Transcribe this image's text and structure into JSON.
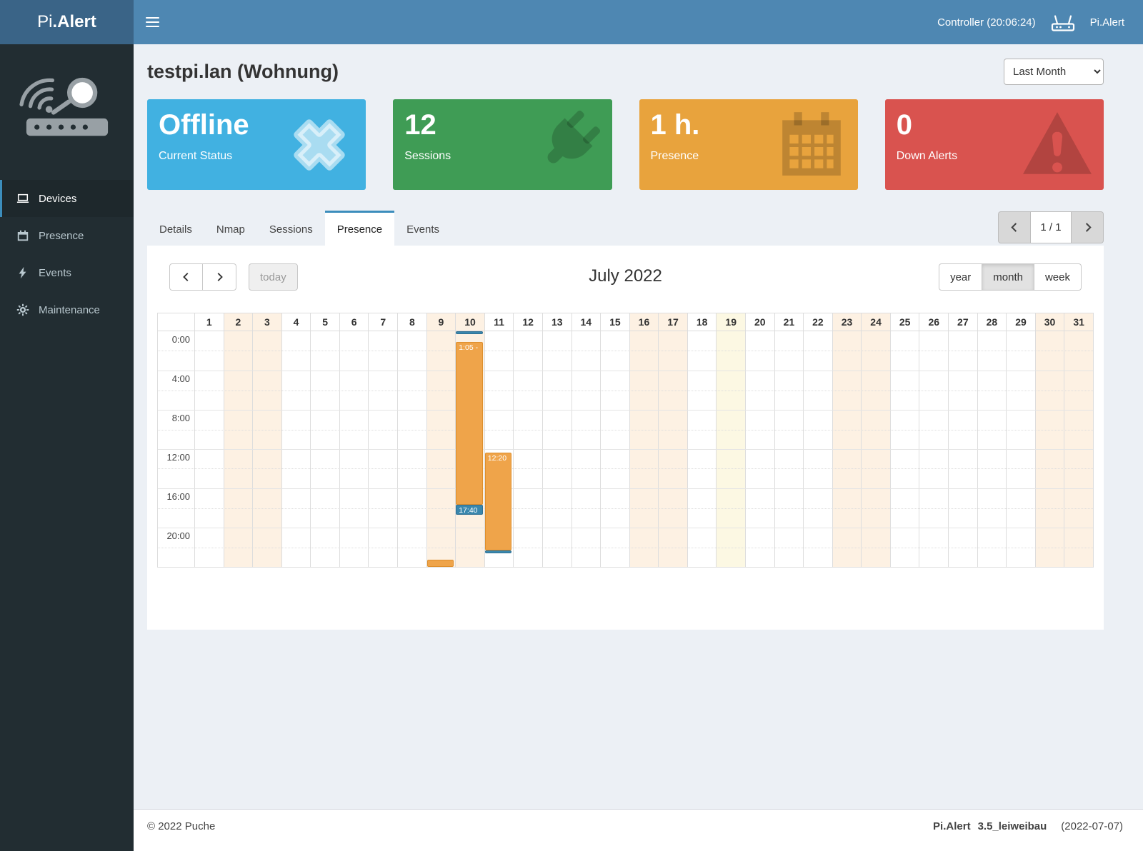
{
  "brand": {
    "light": "Pi",
    "bold": ".Alert"
  },
  "header": {
    "controller": "Controller (20:06:24)",
    "user": "Pi.Alert"
  },
  "sidebar": {
    "items": [
      {
        "label": "Devices",
        "icon": "laptop",
        "active": true
      },
      {
        "label": "Presence",
        "icon": "calendar",
        "active": false
      },
      {
        "label": "Events",
        "icon": "bolt",
        "active": false
      },
      {
        "label": "Maintenance",
        "icon": "gear",
        "active": false
      }
    ]
  },
  "page": {
    "title": "testpi.lan (Wohnung)",
    "period": "Last Month"
  },
  "cards": [
    {
      "value": "Offline",
      "label": "Current Status",
      "color": "#41b1e1",
      "icon": "close",
      "icon_color": "rgba(255,255,255,0.55)"
    },
    {
      "value": "12",
      "label": "Sessions",
      "color": "#3f9c55",
      "icon": "plug",
      "icon_color": "rgba(0,0,0,0.18)"
    },
    {
      "value": "1 h.",
      "label": "Presence",
      "color": "#e8a33d",
      "icon": "calendar-grid",
      "icon_color": "rgba(0,0,0,0.18)"
    },
    {
      "value": "0",
      "label": "Down Alerts",
      "color": "#d9534f",
      "icon": "warning",
      "icon_color": "rgba(0,0,0,0.18)"
    }
  ],
  "tabs": {
    "items": [
      "Details",
      "Nmap",
      "Sessions",
      "Presence",
      "Events"
    ],
    "active": "Presence"
  },
  "pagination": {
    "page": "1 / 1"
  },
  "calendar": {
    "title": "July 2022",
    "today_label": "today",
    "views": [
      "year",
      "month",
      "week"
    ],
    "active_view": "month",
    "days": 31,
    "weekend_days": [
      2,
      3,
      9,
      10,
      16,
      17,
      23,
      24,
      30,
      31
    ],
    "today_day": 19,
    "time_labels": [
      "0:00",
      "4:00",
      "8:00",
      "12:00",
      "16:00",
      "20:00"
    ],
    "events": [
      {
        "day": 9,
        "start": 23.3,
        "end": 24.0,
        "type": "orange",
        "label": ""
      },
      {
        "day": 10,
        "start": 0.0,
        "end": 0.3,
        "type": "blue",
        "label": ""
      },
      {
        "day": 10,
        "start": 1.08,
        "end": 17.67,
        "type": "orange",
        "label": "1:05 -"
      },
      {
        "day": 10,
        "start": 17.67,
        "end": 18.2,
        "type": "blue",
        "label": "17:40"
      },
      {
        "day": 11,
        "start": 12.33,
        "end": 22.33,
        "type": "orange",
        "label": "12:20"
      },
      {
        "day": 11,
        "start": 22.33,
        "end": 22.6,
        "type": "blue",
        "label": ""
      }
    ],
    "event_colors": {
      "orange": "#efa44a",
      "blue": "#3a87ad"
    }
  },
  "footer": {
    "copyright": "© 2022 Puche",
    "app": "Pi.Alert",
    "version": "3.5_leiweibau",
    "date": "(2022-07-07)"
  },
  "colors": {
    "accent": "#3c8dbc",
    "header": "#4e87b2",
    "sidebar": "#222d32"
  }
}
